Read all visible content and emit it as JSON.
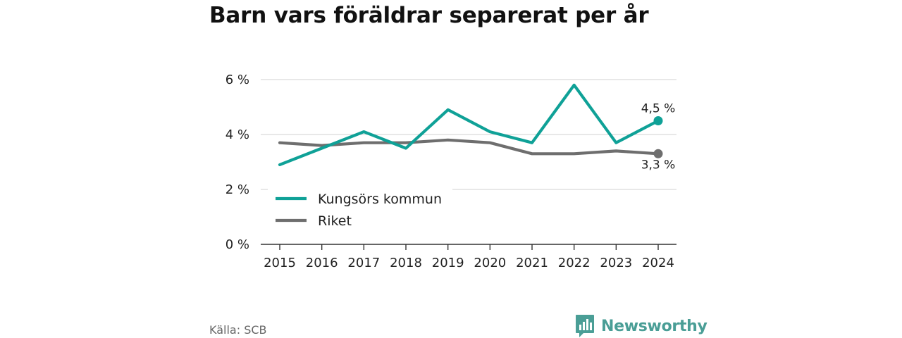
{
  "page": {
    "title": "Barn vars föräldrar separerat per år",
    "source": "Källa: SCB",
    "brand": "Newsworthy"
  },
  "chart_data": {
    "type": "line",
    "title": "Barn vars föräldrar separerat per år",
    "xlabel": "",
    "ylabel": "",
    "categories": [
      "2015",
      "2016",
      "2017",
      "2018",
      "2019",
      "2020",
      "2021",
      "2022",
      "2023",
      "2024"
    ],
    "ylim": [
      0,
      6.2
    ],
    "yticks": [
      0,
      2,
      4,
      6
    ],
    "ytick_labels": [
      "0 %",
      "2 %",
      "4 %",
      "6 %"
    ],
    "grid": true,
    "legend_position": "bottom-left",
    "series": [
      {
        "name": "Kungsörs kommun",
        "color": "#0fa197",
        "values": [
          2.9,
          3.5,
          4.1,
          3.5,
          4.9,
          4.1,
          3.7,
          5.8,
          3.7,
          4.5
        ],
        "end_label": "4,5 %"
      },
      {
        "name": "Riket",
        "color": "#6e6e6e",
        "values": [
          3.7,
          3.6,
          3.7,
          3.7,
          3.8,
          3.7,
          3.3,
          3.3,
          3.4,
          3.3
        ],
        "end_label": "3,3 %"
      }
    ]
  }
}
